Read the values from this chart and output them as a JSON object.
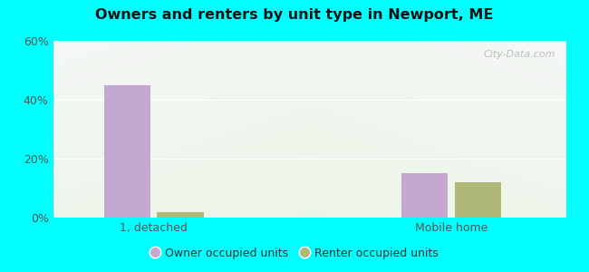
{
  "title": "Owners and renters by unit type in Newport, ME",
  "categories": [
    "1, detached",
    "Mobile home"
  ],
  "owner_values": [
    45,
    15
  ],
  "renter_values": [
    2,
    12
  ],
  "owner_color": "#c4a8d0",
  "renter_color": "#b0b878",
  "ylim": [
    0,
    60
  ],
  "yticks": [
    0,
    20,
    40,
    60
  ],
  "ytick_labels": [
    "0%",
    "20%",
    "40%",
    "60%"
  ],
  "bar_width": 0.28,
  "outer_bg": "#00ffff",
  "legend_labels": [
    "Owner occupied units",
    "Renter occupied units"
  ],
  "watermark": "City-Data.com",
  "x_positions": [
    0.35,
    2.15
  ],
  "xlim": [
    -0.1,
    3.0
  ]
}
